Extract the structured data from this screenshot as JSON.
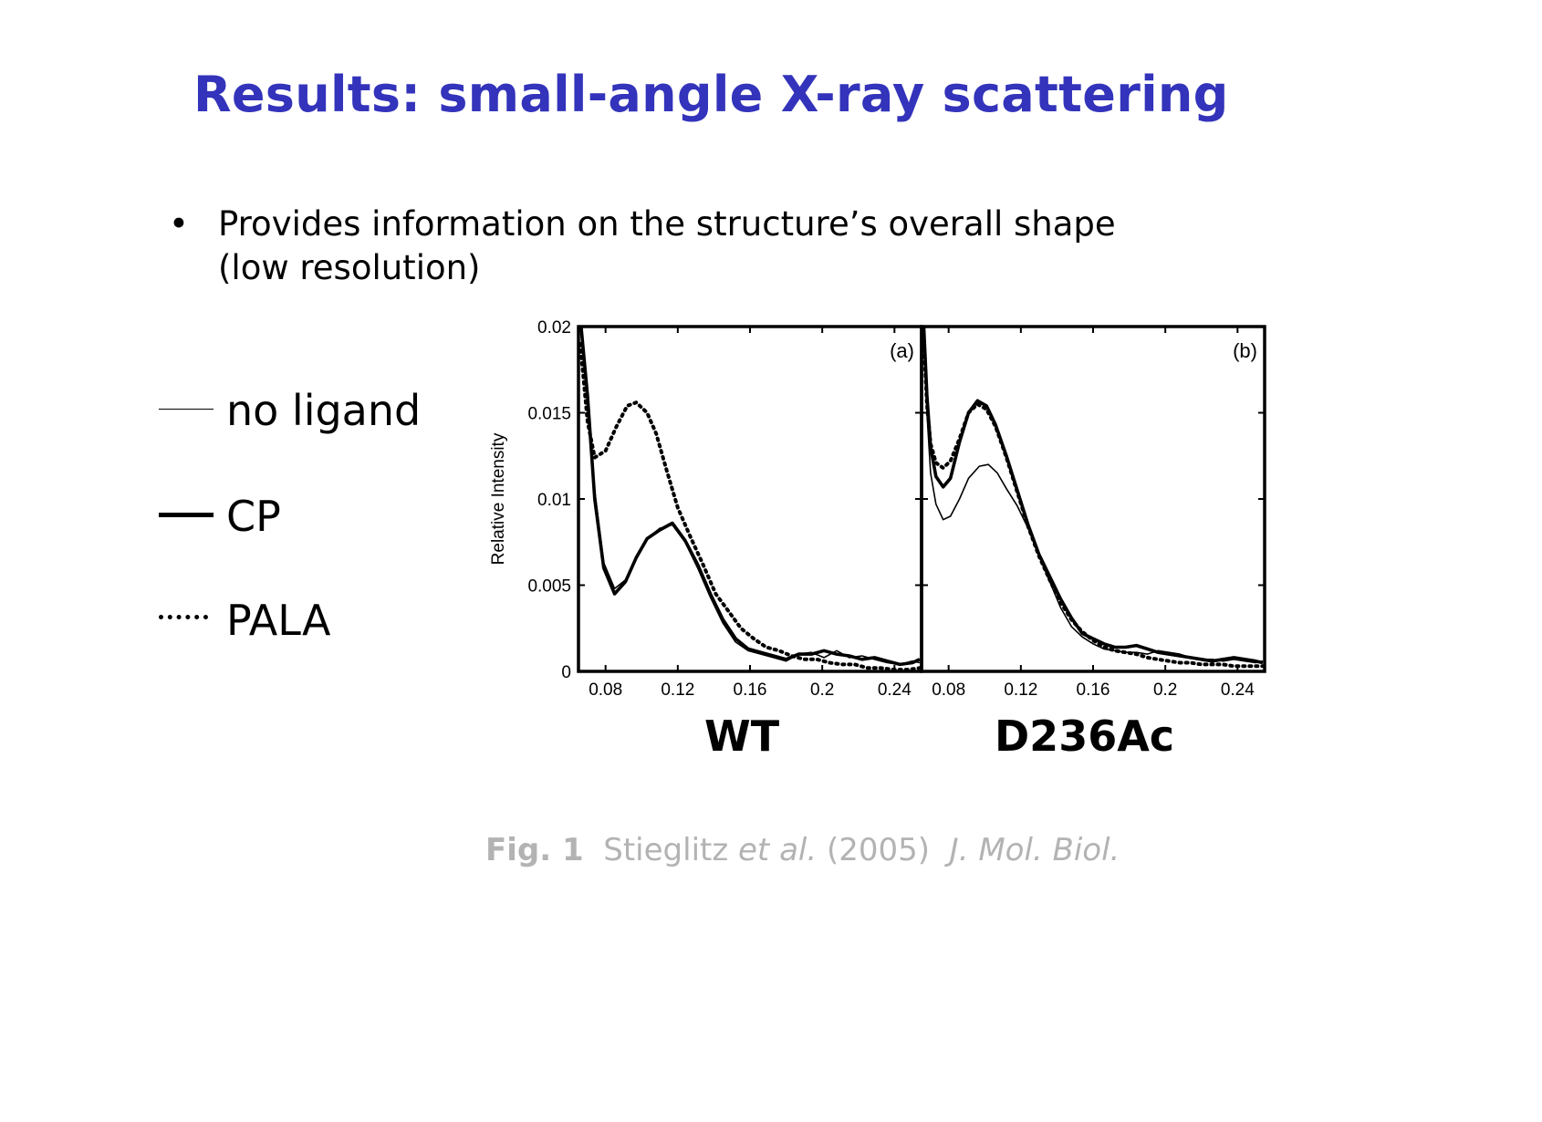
{
  "slide": {
    "title": "Results: small-angle X-ray scattering",
    "bullet_symbol": "•",
    "bullet_line1": "Provides information on the structure’s overall shape",
    "bullet_line2": "(low resolution)",
    "legend": [
      {
        "label": "no ligand",
        "style": "thin"
      },
      {
        "label": "CP",
        "style": "thick"
      },
      {
        "label": "PALA",
        "style": "dotted"
      }
    ],
    "panel_labels": [
      "WT",
      "D236Ac"
    ],
    "caption": {
      "fig": "Fig. 1",
      "authors": "Stieglitz",
      "etal": "et al.",
      "year": "(2005)",
      "journal": "J. Mol. Biol."
    }
  },
  "chart_data": [
    {
      "type": "line",
      "panel_tag": "(a)",
      "ylabel": "Relative Intensity",
      "xlim": [
        0.065,
        0.255
      ],
      "ylim": [
        0,
        0.02
      ],
      "xticks": [
        0.08,
        0.12,
        0.16,
        0.2,
        0.24
      ],
      "xtick_labels": [
        "0.08",
        "0.12",
        "0.16",
        "0.2",
        "0.24"
      ],
      "yticks": [
        0,
        0.005,
        0.01,
        0.015,
        0.02
      ],
      "ytick_labels": [
        "0",
        "0.005",
        "0.01",
        "0.015",
        "0.02"
      ],
      "series": [
        {
          "style": "thin",
          "points": [
            [
              0.066,
              0.0205
            ],
            [
              0.07,
              0.016
            ],
            [
              0.074,
              0.0105
            ],
            [
              0.079,
              0.0063
            ],
            [
              0.085,
              0.0048
            ],
            [
              0.091,
              0.0053
            ],
            [
              0.097,
              0.0065
            ],
            [
              0.103,
              0.0077
            ],
            [
              0.11,
              0.0083
            ],
            [
              0.117,
              0.0085
            ],
            [
              0.124,
              0.0075
            ],
            [
              0.131,
              0.006
            ],
            [
              0.138,
              0.0043
            ],
            [
              0.145,
              0.0028
            ],
            [
              0.152,
              0.0017
            ],
            [
              0.159,
              0.0012
            ],
            [
              0.166,
              0.001
            ],
            [
              0.173,
              0.0008
            ],
            [
              0.18,
              0.0006
            ],
            [
              0.187,
              0.001
            ],
            [
              0.194,
              0.0011
            ],
            [
              0.201,
              0.0008
            ],
            [
              0.208,
              0.0012
            ],
            [
              0.215,
              0.0008
            ],
            [
              0.222,
              0.0009
            ],
            [
              0.229,
              0.0007
            ],
            [
              0.236,
              0.0005
            ],
            [
              0.243,
              0.0004
            ],
            [
              0.25,
              0.0006
            ],
            [
              0.254,
              0.0005
            ]
          ]
        },
        {
          "style": "thick",
          "points": [
            [
              0.066,
              0.0205
            ],
            [
              0.07,
              0.016
            ],
            [
              0.074,
              0.01
            ],
            [
              0.079,
              0.006
            ],
            [
              0.085,
              0.0045
            ],
            [
              0.091,
              0.0052
            ],
            [
              0.097,
              0.0066
            ],
            [
              0.103,
              0.0077
            ],
            [
              0.11,
              0.0082
            ],
            [
              0.117,
              0.0086
            ],
            [
              0.124,
              0.0076
            ],
            [
              0.131,
              0.0062
            ],
            [
              0.138,
              0.0045
            ],
            [
              0.145,
              0.003
            ],
            [
              0.152,
              0.0019
            ],
            [
              0.159,
              0.0013
            ],
            [
              0.166,
              0.0011
            ],
            [
              0.173,
              0.0009
            ],
            [
              0.18,
              0.0007
            ],
            [
              0.187,
              0.001
            ],
            [
              0.194,
              0.001
            ],
            [
              0.201,
              0.0012
            ],
            [
              0.208,
              0.001
            ],
            [
              0.215,
              0.0009
            ],
            [
              0.222,
              0.0007
            ],
            [
              0.229,
              0.0008
            ],
            [
              0.236,
              0.0006
            ],
            [
              0.243,
              0.0004
            ],
            [
              0.25,
              0.0005
            ],
            [
              0.254,
              0.0007
            ]
          ]
        },
        {
          "style": "dotted",
          "points": [
            [
              0.066,
              0.019
            ],
            [
              0.07,
              0.0145
            ],
            [
              0.074,
              0.0124
            ],
            [
              0.08,
              0.0128
            ],
            [
              0.086,
              0.0142
            ],
            [
              0.092,
              0.0154
            ],
            [
              0.097,
              0.0156
            ],
            [
              0.103,
              0.015
            ],
            [
              0.108,
              0.0138
            ],
            [
              0.114,
              0.0116
            ],
            [
              0.12,
              0.0095
            ],
            [
              0.127,
              0.0078
            ],
            [
              0.134,
              0.0062
            ],
            [
              0.141,
              0.0045
            ],
            [
              0.148,
              0.0035
            ],
            [
              0.155,
              0.0025
            ],
            [
              0.162,
              0.0019
            ],
            [
              0.169,
              0.0014
            ],
            [
              0.176,
              0.0012
            ],
            [
              0.183,
              0.0009
            ],
            [
              0.19,
              0.0007
            ],
            [
              0.197,
              0.0007
            ],
            [
              0.204,
              0.0005
            ],
            [
              0.211,
              0.0004
            ],
            [
              0.218,
              0.0004
            ],
            [
              0.225,
              0.0002
            ],
            [
              0.232,
              0.0002
            ],
            [
              0.24,
              0.0001
            ],
            [
              0.248,
              0.0001
            ],
            [
              0.254,
              0.0002
            ]
          ]
        }
      ]
    },
    {
      "type": "line",
      "panel_tag": "(b)",
      "ylabel": "",
      "xlim": [
        0.065,
        0.255
      ],
      "ylim": [
        0,
        0.02
      ],
      "xticks": [
        0.08,
        0.12,
        0.16,
        0.2,
        0.24
      ],
      "xtick_labels": [
        "0.08",
        "0.12",
        "0.16",
        "0.2",
        "0.24"
      ],
      "yticks": [
        0,
        0.005,
        0.01,
        0.015,
        0.02
      ],
      "ytick_labels": [],
      "series": [
        {
          "style": "thin",
          "points": [
            [
              0.066,
              0.0198
            ],
            [
              0.068,
              0.015
            ],
            [
              0.07,
              0.0115
            ],
            [
              0.073,
              0.0097
            ],
            [
              0.077,
              0.0088
            ],
            [
              0.081,
              0.009
            ],
            [
              0.086,
              0.01
            ],
            [
              0.091,
              0.0112
            ],
            [
              0.097,
              0.0119
            ],
            [
              0.102,
              0.012
            ],
            [
              0.107,
              0.0115
            ],
            [
              0.112,
              0.0106
            ],
            [
              0.118,
              0.0096
            ],
            [
              0.124,
              0.0083
            ],
            [
              0.13,
              0.0067
            ],
            [
              0.136,
              0.0052
            ],
            [
              0.142,
              0.0037
            ],
            [
              0.148,
              0.0026
            ],
            [
              0.154,
              0.002
            ],
            [
              0.16,
              0.0016
            ],
            [
              0.166,
              0.0013
            ],
            [
              0.172,
              0.0012
            ],
            [
              0.178,
              0.0011
            ],
            [
              0.184,
              0.0011
            ],
            [
              0.19,
              0.001
            ],
            [
              0.196,
              0.0012
            ],
            [
              0.202,
              0.0011
            ],
            [
              0.208,
              0.001
            ],
            [
              0.214,
              0.0008
            ],
            [
              0.22,
              0.0007
            ],
            [
              0.226,
              0.0007
            ],
            [
              0.232,
              0.0006
            ],
            [
              0.238,
              0.0007
            ],
            [
              0.244,
              0.0006
            ],
            [
              0.25,
              0.0005
            ],
            [
              0.254,
              0.0006
            ]
          ]
        },
        {
          "style": "thick",
          "points": [
            [
              0.066,
              0.0205
            ],
            [
              0.068,
              0.016
            ],
            [
              0.07,
              0.013
            ],
            [
              0.073,
              0.0113
            ],
            [
              0.077,
              0.0107
            ],
            [
              0.081,
              0.0112
            ],
            [
              0.086,
              0.0133
            ],
            [
              0.091,
              0.015
            ],
            [
              0.096,
              0.0157
            ],
            [
              0.101,
              0.0154
            ],
            [
              0.106,
              0.0143
            ],
            [
              0.112,
              0.0125
            ],
            [
              0.118,
              0.0105
            ],
            [
              0.124,
              0.0085
            ],
            [
              0.13,
              0.0068
            ],
            [
              0.136,
              0.0055
            ],
            [
              0.142,
              0.0042
            ],
            [
              0.148,
              0.0031
            ],
            [
              0.154,
              0.0022
            ],
            [
              0.16,
              0.0019
            ],
            [
              0.166,
              0.0016
            ],
            [
              0.172,
              0.0014
            ],
            [
              0.178,
              0.0014
            ],
            [
              0.184,
              0.0015
            ],
            [
              0.19,
              0.0013
            ],
            [
              0.196,
              0.0011
            ],
            [
              0.202,
              0.001
            ],
            [
              0.208,
              0.0009
            ],
            [
              0.214,
              0.0008
            ],
            [
              0.22,
              0.0007
            ],
            [
              0.226,
              0.0006
            ],
            [
              0.232,
              0.0007
            ],
            [
              0.238,
              0.0008
            ],
            [
              0.244,
              0.0007
            ],
            [
              0.25,
              0.0006
            ],
            [
              0.254,
              0.0005
            ]
          ]
        },
        {
          "style": "dotted",
          "points": [
            [
              0.066,
              0.0198
            ],
            [
              0.068,
              0.0155
            ],
            [
              0.07,
              0.0132
            ],
            [
              0.073,
              0.0121
            ],
            [
              0.077,
              0.0118
            ],
            [
              0.081,
              0.0122
            ],
            [
              0.086,
              0.0135
            ],
            [
              0.091,
              0.015
            ],
            [
              0.096,
              0.0155
            ],
            [
              0.101,
              0.0152
            ],
            [
              0.106,
              0.0142
            ],
            [
              0.112,
              0.0124
            ],
            [
              0.118,
              0.0104
            ],
            [
              0.124,
              0.0084
            ],
            [
              0.13,
              0.0067
            ],
            [
              0.136,
              0.0053
            ],
            [
              0.142,
              0.004
            ],
            [
              0.148,
              0.003
            ],
            [
              0.154,
              0.0023
            ],
            [
              0.16,
              0.0018
            ],
            [
              0.166,
              0.0014
            ],
            [
              0.172,
              0.0012
            ],
            [
              0.178,
              0.0011
            ],
            [
              0.184,
              0.001
            ],
            [
              0.19,
              0.0008
            ],
            [
              0.196,
              0.0007
            ],
            [
              0.202,
              0.0006
            ],
            [
              0.208,
              0.0005
            ],
            [
              0.214,
              0.0005
            ],
            [
              0.22,
              0.0004
            ],
            [
              0.226,
              0.0004
            ],
            [
              0.232,
              0.0004
            ],
            [
              0.238,
              0.0003
            ],
            [
              0.244,
              0.0003
            ],
            [
              0.25,
              0.0003
            ],
            [
              0.254,
              0.0003
            ]
          ]
        }
      ]
    }
  ]
}
